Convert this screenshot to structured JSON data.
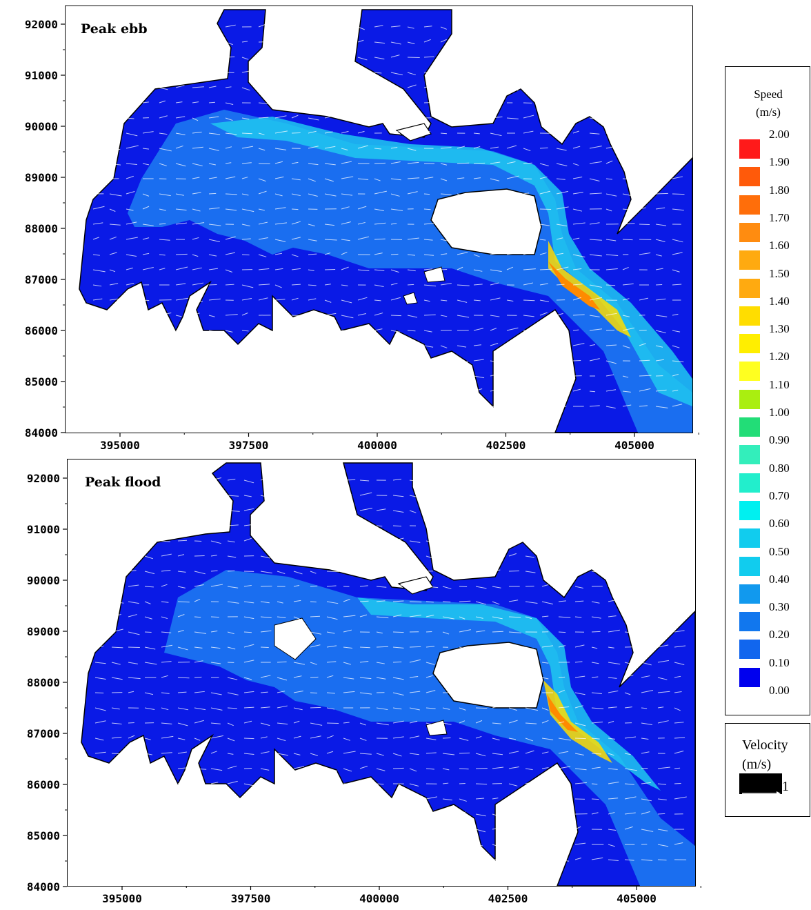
{
  "panels": [
    {
      "label": "Peak ebb"
    },
    {
      "label": "Peak flood"
    }
  ],
  "axes": {
    "y_ticks": [
      "92000",
      "91000",
      "90000",
      "89000",
      "88000",
      "87000",
      "86000",
      "85000",
      "84000"
    ],
    "x_ticks": [
      "395000",
      "397500",
      "400000",
      "402500",
      "405000"
    ]
  },
  "speed_legend": {
    "title_line1": "Speed",
    "title_line2": "(m/s)",
    "values": [
      "2.00",
      "1.90",
      "1.80",
      "1.70",
      "1.60",
      "1.50",
      "1.40",
      "1.30",
      "1.20",
      "1.10",
      "1.00",
      "0.90",
      "0.80",
      "0.70",
      "0.60",
      "0.50",
      "0.40",
      "0.30",
      "0.20",
      "0.10",
      "0.00"
    ],
    "colors": [
      "#ff1a1a",
      "#ff5a0a",
      "#ff6e0a",
      "#ff8c10",
      "#ffaa10",
      "#ffaa10",
      "#ffdd00",
      "#ffee00",
      "#ffff20",
      "#aaee10",
      "#22dd77",
      "#33eebb",
      "#22eecc",
      "#00f0f0",
      "#11ccee",
      "#11ccee",
      "#1199ee",
      "#1177ee",
      "#1166ee",
      "#0000ee"
    ]
  },
  "velocity_legend": {
    "title_line1": "Velocity",
    "title_line2": "(m/s)",
    "scale_value": "1"
  },
  "colors": {
    "water_low": "#0a1ae6",
    "water_mid": "#1a6ef0",
    "water_high": "#20c8f0",
    "jet_hot": "#ff8a00"
  }
}
